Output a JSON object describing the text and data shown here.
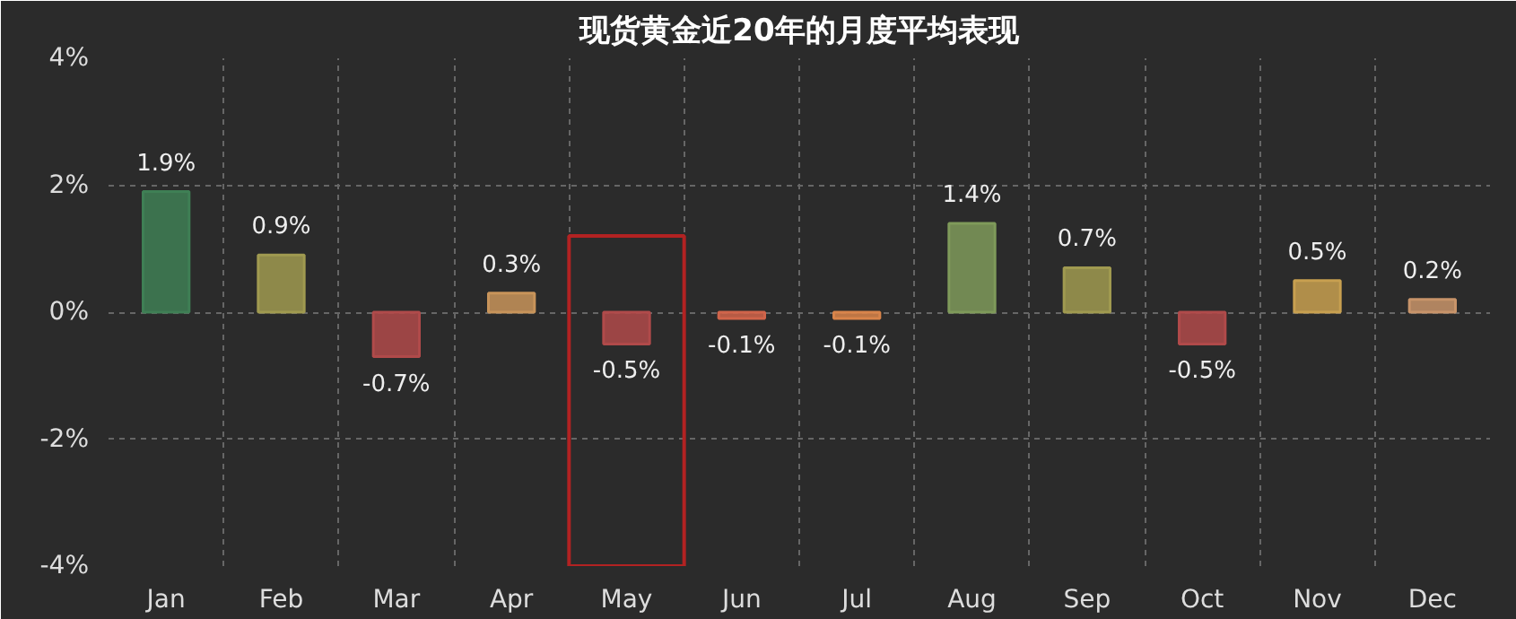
{
  "chart_data": {
    "type": "bar",
    "title": "现货黄金近20年的月度平均表现",
    "categories": [
      "Jan",
      "Feb",
      "Mar",
      "Apr",
      "May",
      "Jun",
      "Jul",
      "Aug",
      "Sep",
      "Oct",
      "Nov",
      "Dec"
    ],
    "values": [
      1.9,
      0.9,
      -0.7,
      0.3,
      -0.5,
      -0.1,
      -0.1,
      1.4,
      0.7,
      -0.5,
      0.5,
      0.2
    ],
    "value_labels": [
      "1.9%",
      "0.9%",
      "-0.7%",
      "0.3%",
      "-0.5%",
      "-0.1%",
      "-0.1%",
      "1.4%",
      "0.7%",
      "-0.5%",
      "0.5%",
      "0.2%"
    ],
    "colors": [
      "#3f7f55",
      "#a09a50",
      "#b04a4a",
      "#c8945a",
      "#b04a4a",
      "#d0644a",
      "#d8844a",
      "#7f9a5a",
      "#a09a50",
      "#b04a4a",
      "#c8a050",
      "#c8946a"
    ],
    "ylim": [
      -4,
      4
    ],
    "yticks": [
      {
        "value": -4,
        "label": "-4%"
      },
      {
        "value": -2,
        "label": "-2%"
      },
      {
        "value": 0,
        "label": "0%"
      },
      {
        "value": 2,
        "label": "2%"
      },
      {
        "value": 4,
        "label": "4%"
      }
    ],
    "grid": true
  }
}
